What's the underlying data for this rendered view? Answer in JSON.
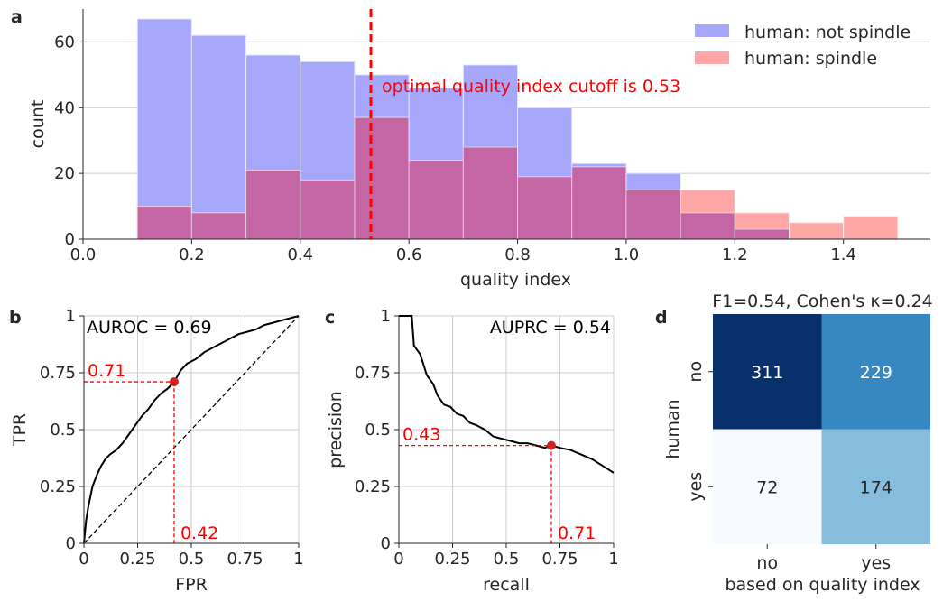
{
  "colors": {
    "not_spindle": "#a6a6fb",
    "spindle": "#fe7f7f",
    "overlap": "#c466a3",
    "cutoff": "#ff0000",
    "curve": "#000000",
    "grid": "#cccccc",
    "cm_dark": "#08306b",
    "cm_mid": "#3787c0",
    "cm_light": "#87bddc",
    "cm_pale": "#f7fbff"
  },
  "panels": {
    "a": "a",
    "b": "b",
    "c": "c",
    "d": "d"
  },
  "chart_data": [
    {
      "type": "bar",
      "panel": "a",
      "xlabel": "quality index",
      "ylabel": "count",
      "xlim": [
        0,
        1.56
      ],
      "ylim": [
        0,
        70
      ],
      "xticks": [
        "0.0",
        "0.2",
        "0.4",
        "0.6",
        "0.8",
        "1.0",
        "1.2",
        "1.4"
      ],
      "yticks": [
        "0",
        "20",
        "40",
        "60"
      ],
      "grid": "y",
      "legend_position": "top-right",
      "bin_edges": [
        0.1,
        0.2,
        0.3,
        0.4,
        0.5,
        0.6,
        0.7,
        0.8,
        0.9,
        1.0,
        1.1,
        1.2,
        1.3,
        1.4,
        1.5
      ],
      "series": [
        {
          "name": "human: not spindle",
          "values": [
            67,
            62,
            56,
            54,
            50,
            46,
            53,
            40,
            23,
            20,
            8,
            3,
            0,
            0
          ]
        },
        {
          "name": "human: spindle",
          "values": [
            10,
            8,
            21,
            18,
            37,
            24,
            28,
            19,
            22,
            15,
            15,
            8,
            5,
            7
          ]
        }
      ],
      "cutoff": 0.53,
      "annotation": "optimal quality index cutoff is 0.53"
    },
    {
      "type": "line",
      "panel": "b",
      "xlabel": "FPR",
      "ylabel": "TPR",
      "xlim": [
        0,
        1
      ],
      "ylim": [
        0,
        1
      ],
      "xticks": [
        "0",
        "0.25",
        "0.5",
        "0.75",
        "1"
      ],
      "yticks": [
        "0",
        "0.25",
        "0.5",
        "0.75",
        "1"
      ],
      "grid": "both",
      "annotation": "AUROC = 0.69",
      "point": {
        "x": 0.42,
        "y": 0.71
      },
      "point_labels": {
        "x": "0.42",
        "y": "0.71"
      },
      "x": [
        0,
        0.005,
        0.01,
        0.02,
        0.04,
        0.06,
        0.08,
        0.1,
        0.12,
        0.15,
        0.18,
        0.21,
        0.24,
        0.27,
        0.3,
        0.33,
        0.36,
        0.39,
        0.42,
        0.45,
        0.48,
        0.52,
        0.56,
        0.6,
        0.64,
        0.68,
        0.72,
        0.76,
        0.8,
        0.84,
        0.88,
        0.92,
        0.96,
        1.0
      ],
      "y": [
        0,
        0.05,
        0.1,
        0.16,
        0.25,
        0.3,
        0.34,
        0.37,
        0.39,
        0.41,
        0.44,
        0.48,
        0.52,
        0.56,
        0.59,
        0.63,
        0.66,
        0.68,
        0.71,
        0.76,
        0.79,
        0.81,
        0.84,
        0.86,
        0.88,
        0.9,
        0.92,
        0.93,
        0.94,
        0.96,
        0.97,
        0.98,
        0.99,
        1.0
      ]
    },
    {
      "type": "line",
      "panel": "c",
      "xlabel": "recall",
      "ylabel": "precision",
      "xlim": [
        0,
        1
      ],
      "ylim": [
        0,
        1
      ],
      "xticks": [
        "0",
        "0.25",
        "0.5",
        "0.75",
        "1"
      ],
      "yticks": [
        "0",
        "0.25",
        "0.5",
        "0.75",
        "1"
      ],
      "grid": "both",
      "annotation": "AUPRC = 0.54",
      "point": {
        "x": 0.71,
        "y": 0.43
      },
      "point_labels": {
        "x": "0.71",
        "y": "0.43"
      },
      "x": [
        0.0,
        0.06,
        0.07,
        0.1,
        0.13,
        0.16,
        0.18,
        0.21,
        0.24,
        0.27,
        0.3,
        0.33,
        0.36,
        0.4,
        0.44,
        0.48,
        0.52,
        0.56,
        0.6,
        0.64,
        0.68,
        0.71,
        0.75,
        0.8,
        0.85,
        0.9,
        0.95,
        1.0
      ],
      "y": [
        1.0,
        1.0,
        0.87,
        0.83,
        0.74,
        0.7,
        0.65,
        0.61,
        0.6,
        0.57,
        0.56,
        0.53,
        0.52,
        0.5,
        0.47,
        0.46,
        0.45,
        0.44,
        0.44,
        0.43,
        0.42,
        0.43,
        0.42,
        0.41,
        0.39,
        0.37,
        0.34,
        0.31
      ]
    },
    {
      "type": "heatmap",
      "panel": "d",
      "title": "F1=0.54, Cohen's κ=0.24",
      "xlabel": "based on quality index",
      "ylabel": "human",
      "xticks": [
        "no",
        "yes"
      ],
      "yticks": [
        "no",
        "yes"
      ],
      "values": [
        [
          311,
          229
        ],
        [
          72,
          174
        ]
      ]
    }
  ]
}
